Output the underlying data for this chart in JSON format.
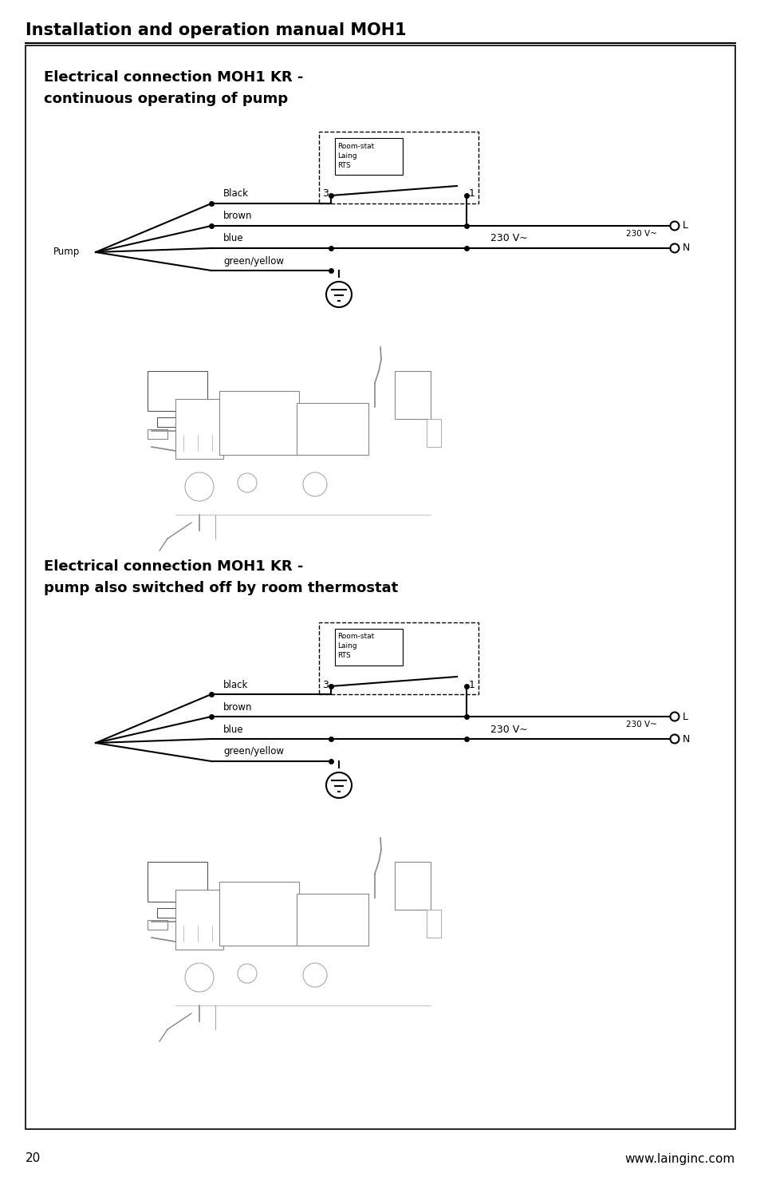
{
  "page_title": "Installation and operation manual MOH1",
  "page_number": "20",
  "website": "www.lainginc.com",
  "section1_title_line1": "Electrical connection MOH1 KR -",
  "section1_title_line2": "continuous operating of pump",
  "section2_title_line1": "Electrical connection MOH1 KR -",
  "section2_title_line2": "pump also switched off by room thermostat",
  "bg_color": "#ffffff",
  "border_color": "#000000",
  "text_color": "#000000"
}
